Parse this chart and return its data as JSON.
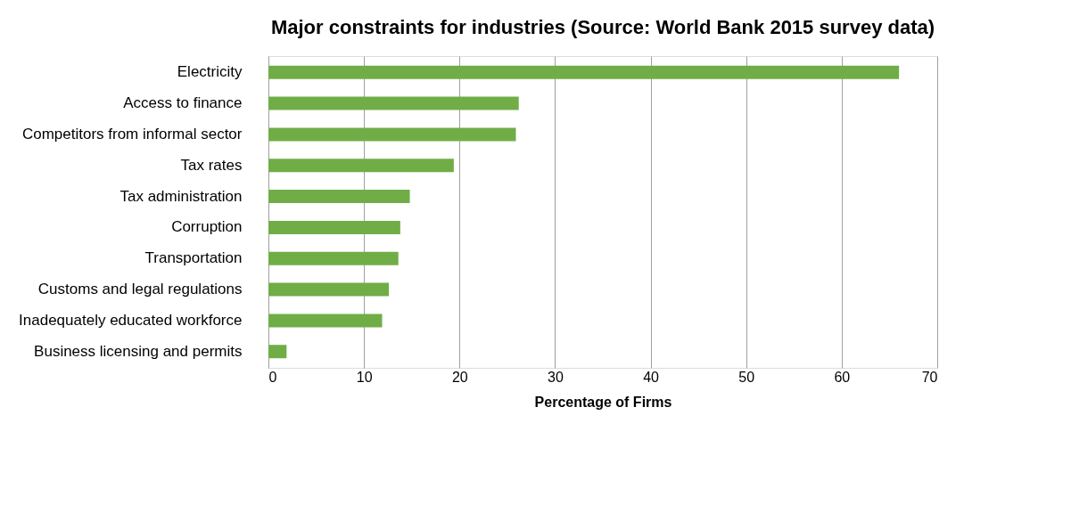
{
  "chart_data": {
    "type": "bar",
    "orientation": "horizontal",
    "title": "Major constraints for industries (Source: World Bank 2015 survey data)",
    "xlabel": "Percentage of Firms",
    "categories": [
      "Electricity",
      "Access to finance",
      "Competitors from informal sector",
      "Tax rates",
      "Tax administration",
      "Corruption",
      "Transportation",
      "Customs and legal regulations",
      "Inadequately educated workforce",
      "Business licensing and permits"
    ],
    "values": [
      66,
      26.2,
      25.9,
      19.4,
      14.8,
      13.8,
      13.6,
      12.6,
      11.9,
      1.9
    ],
    "color": "#70ad47",
    "xlim": [
      0,
      70
    ],
    "xticks": [
      0,
      10,
      20,
      30,
      40,
      50,
      60,
      70
    ],
    "grid": "x"
  }
}
